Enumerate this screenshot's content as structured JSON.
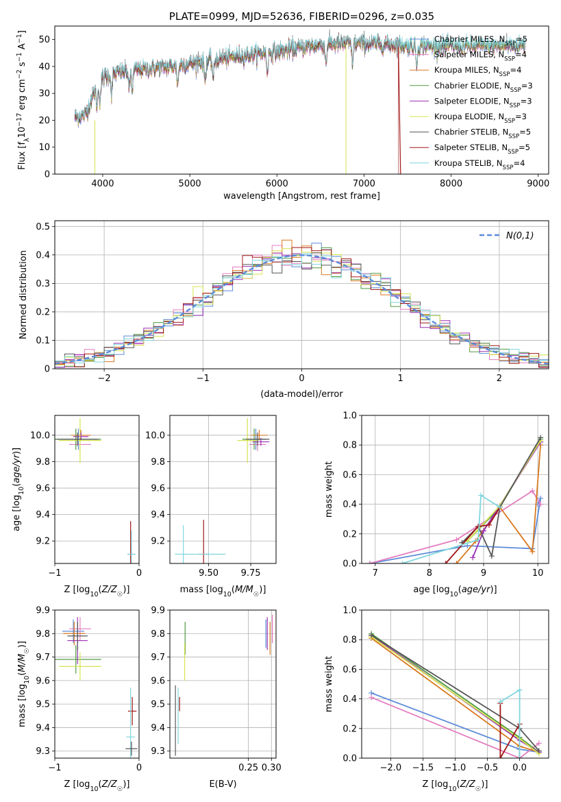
{
  "colors": [
    "#5b8bd9",
    "#e37cbf",
    "#d9781e",
    "#4e9a3e",
    "#9b2fb5",
    "#d5e34f",
    "#555555",
    "#a01515",
    "#7fd6de"
  ],
  "chart_data": [
    {
      "type": "line",
      "title": "PLATE=0999, MJD=52636, FIBERID=0296, z=0.035",
      "xlabel": "wavelength [Angstrom, rest frame]",
      "ylabel": "Flux [f_λ 10^-17 erg cm^-2 s^-1 A^-1]",
      "xlim": [
        3450,
        9120
      ],
      "ylim": [
        0,
        55
      ],
      "xticks": [
        4000,
        5000,
        6000,
        7000,
        8000,
        9000
      ],
      "yticks": [
        0,
        10,
        20,
        30,
        40,
        50
      ],
      "legend_position": "right",
      "spectrum_shape": {
        "x": [
          3680,
          3800,
          3900,
          4000,
          4200,
          4500,
          4800,
          5000,
          5500,
          6000,
          6300,
          6500,
          6800,
          7000,
          7500,
          8000,
          8500,
          8850
        ],
        "y": [
          21,
          22,
          30,
          36,
          38,
          39,
          40,
          41,
          43.5,
          45.5,
          47,
          48,
          48.5,
          48.5,
          47.8,
          47.5,
          47.5,
          48
        ]
      },
      "series": [
        {
          "name": "Chabrier MILES, N_SSP=5"
        },
        {
          "name": "Salpeter MILES, N_SSP=4"
        },
        {
          "name": "Kroupa MILES, N_SSP=4"
        },
        {
          "name": "Chabrier ELODIE, N_SSP=3"
        },
        {
          "name": "Salpeter ELODIE, N_SSP=3"
        },
        {
          "name": "Kroupa ELODIE, N_SSP=3"
        },
        {
          "name": "Chabrier STELIB, N_SSP=5"
        },
        {
          "name": "Salpeter STELIB, N_SSP=5"
        },
        {
          "name": "Kroupa STELIB, N_SSP=4"
        }
      ],
      "legend_text": [
        {
          "a": "Chabrier MILES, N",
          "b": "SSP",
          "c": "=5"
        },
        {
          "a": "Salpeter MILES, N",
          "b": "SSP",
          "c": "=4"
        },
        {
          "a": "Kroupa MILES, N",
          "b": "SSP",
          "c": "=4"
        },
        {
          "a": "Chabrier ELODIE, N",
          "b": "SSP",
          "c": "=3"
        },
        {
          "a": "Salpeter ELODIE, N",
          "b": "SSP",
          "c": "=3"
        },
        {
          "a": "Kroupa ELODIE, N",
          "b": "SSP",
          "c": "=3"
        },
        {
          "a": "Chabrier STELIB, N",
          "b": "SSP",
          "c": "=5"
        },
        {
          "a": "Salpeter STELIB, N",
          "b": "SSP",
          "c": "=5"
        },
        {
          "a": "Kroupa STELIB, N",
          "b": "SSP",
          "c": "=4"
        }
      ]
    },
    {
      "type": "histogram",
      "xlabel": "(data-model)/error",
      "ylabel": "Normed distribution",
      "xlim": [
        -2.5,
        2.5
      ],
      "ylim": [
        0,
        0.52
      ],
      "xticks": [
        -2,
        -1,
        0,
        1,
        2
      ],
      "yticks": [
        0.0,
        0.1,
        0.2,
        0.3,
        0.4,
        0.5
      ],
      "grid": true,
      "legend": "N(0,1)",
      "legend_position": "top-right",
      "bin_width": 0.1
    },
    {
      "type": "scatter-errorbar",
      "xlabel": "Z [log10(Z/Z☉)]",
      "ylabel": "age  [log10(age/yr)]",
      "xlim": [
        -1.0,
        0.0
      ],
      "ylim": [
        9.03,
        10.15
      ],
      "xticks": [
        -1,
        0
      ],
      "yticks": [
        9.2,
        9.4,
        9.6,
        9.8,
        10.0
      ],
      "grid": true,
      "points": [
        {
          "x": -0.72,
          "y": 9.97,
          "xerr": 0.2,
          "yerr": 0.08
        },
        {
          "x": -0.7,
          "y": 9.93,
          "xerr": 0.13,
          "yerr": 0.05
        },
        {
          "x": -0.69,
          "y": 10.0,
          "xerr": 0.12,
          "yerr": 0.04
        },
        {
          "x": -0.75,
          "y": 9.97,
          "xerr": 0.3,
          "yerr": 0.08
        },
        {
          "x": -0.69,
          "y": 9.99,
          "xerr": 0.09,
          "yerr": 0.03
        },
        {
          "x": -0.7,
          "y": 9.96,
          "xerr": 0.25,
          "yerr": 0.17
        },
        {
          "x": -0.73,
          "y": 9.97,
          "xerr": 0.25,
          "yerr": 0.05
        },
        {
          "x": -0.1,
          "y": 9.1,
          "xerr": 0.03,
          "yerr": 0.25
        },
        {
          "x": -0.09,
          "y": 9.1,
          "xerr": 0.05,
          "yerr": 0.18
        }
      ]
    },
    {
      "type": "scatter-errorbar",
      "xlabel": "mass [log10(M/M☉)]",
      "ylabel": "",
      "xlim": [
        9.27,
        9.9
      ],
      "ylim": [
        9.03,
        10.15
      ],
      "xticks": [
        9.5,
        9.75
      ],
      "yticks": [
        9.2,
        9.4,
        9.6,
        9.8,
        10.0
      ],
      "grid": true,
      "points": [
        {
          "x": 9.78,
          "y": 9.97,
          "xerr": 0.05,
          "yerr": 0.08
        },
        {
          "x": 9.79,
          "y": 9.93,
          "xerr": 0.05,
          "yerr": 0.05
        },
        {
          "x": 9.8,
          "y": 10.0,
          "xerr": 0.05,
          "yerr": 0.04
        },
        {
          "x": 9.77,
          "y": 9.97,
          "xerr": 0.07,
          "yerr": 0.08
        },
        {
          "x": 9.81,
          "y": 9.95,
          "xerr": 0.05,
          "yerr": 0.03
        },
        {
          "x": 9.73,
          "y": 9.96,
          "xerr": 0.06,
          "yerr": 0.17
        },
        {
          "x": 9.79,
          "y": 9.97,
          "xerr": 0.07,
          "yerr": 0.05
        },
        {
          "x": 9.47,
          "y": 9.1,
          "xerr": 0.03,
          "yerr": 0.26
        },
        {
          "x": 9.35,
          "y": 9.1,
          "xerr": 0.05,
          "yerr": 0.22
        },
        {
          "x": 9.5,
          "y": 9.1,
          "xerr": 0.1,
          "yerr": 0.01
        }
      ]
    },
    {
      "type": "line",
      "xlabel": "age  [log10(age/yr)]",
      "ylabel": "mass weight",
      "xlim": [
        6.75,
        10.2
      ],
      "ylim": [
        0,
        1.0
      ],
      "xticks": [
        7,
        8,
        9,
        10
      ],
      "yticks": [
        0.0,
        0.2,
        0.4,
        0.6,
        0.8,
        1.0
      ],
      "grid": true,
      "series": [
        {
          "x": [
            6.9,
            8.7,
            9.9,
            10.05,
            10.0
          ],
          "y": [
            0.0,
            0.12,
            0.1,
            0.44,
            0.4
          ]
        },
        {
          "x": [
            6.9,
            8.5,
            9.9,
            10.05
          ],
          "y": [
            0.0,
            0.16,
            0.49,
            0.4
          ]
        },
        {
          "x": [
            8.5,
            8.85,
            9.3,
            9.9,
            10.05
          ],
          "y": [
            0.0,
            0.15,
            0.38,
            0.08,
            0.8
          ]
        },
        {
          "x": [
            8.7,
            9.3,
            10.05
          ],
          "y": [
            0.15,
            0.38,
            0.84
          ]
        },
        {
          "x": [
            8.8,
            9.0,
            10.05
          ],
          "y": [
            0.04,
            0.22,
            0.82
          ]
        },
        {
          "x": [
            8.7,
            9.3,
            10.05
          ],
          "y": [
            0.15,
            0.39,
            0.83
          ]
        },
        {
          "x": [
            8.6,
            8.9,
            9.15,
            9.3,
            10.05
          ],
          "y": [
            0.14,
            0.25,
            0.05,
            0.38,
            0.85
          ]
        },
        {
          "x": [
            8.3,
            8.9,
            9.1,
            9.3
          ],
          "y": [
            0.0,
            0.25,
            0.26,
            0.38
          ]
        },
        {
          "x": [
            7.5,
            8.9,
            8.95,
            9.3
          ],
          "y": [
            0.0,
            0.16,
            0.46,
            0.38
          ]
        }
      ]
    },
    {
      "type": "scatter-errorbar",
      "xlabel": "Z [log10(Z/Z☉)]",
      "ylabel": "mass [log10(M/M☉)]",
      "xlim": [
        -1.0,
        0.0
      ],
      "ylim": [
        9.27,
        9.9
      ],
      "xticks": [
        -1,
        0
      ],
      "yticks": [
        9.3,
        9.4,
        9.5,
        9.6,
        9.7,
        9.8,
        9.9
      ],
      "grid": true,
      "points": [
        {
          "x": -0.78,
          "y": 9.81,
          "xerr": 0.13,
          "yerr": 0.05
        },
        {
          "x": -0.7,
          "y": 9.82,
          "xerr": 0.13,
          "yerr": 0.05
        },
        {
          "x": -0.77,
          "y": 9.8,
          "xerr": 0.13,
          "yerr": 0.05
        },
        {
          "x": -0.75,
          "y": 9.69,
          "xerr": 0.3,
          "yerr": 0.06
        },
        {
          "x": -0.73,
          "y": 9.77,
          "xerr": 0.12,
          "yerr": 0.1
        },
        {
          "x": -0.7,
          "y": 9.66,
          "xerr": 0.25,
          "yerr": 0.06
        },
        {
          "x": -0.73,
          "y": 9.79,
          "xerr": 0.12,
          "yerr": 0.06
        },
        {
          "x": -0.08,
          "y": 9.47,
          "xerr": 0.05,
          "yerr": 0.06
        },
        {
          "x": -0.1,
          "y": 9.36,
          "xerr": 0.05,
          "yerr": 0.21
        },
        {
          "x": -0.09,
          "y": 9.31,
          "xerr": 0.07,
          "yerr": 0.03
        }
      ]
    },
    {
      "type": "scatter-errorbar",
      "xlabel": "E(B-V)",
      "ylabel": "",
      "xlim": [
        0.08,
        0.31
      ],
      "ylim": [
        9.27,
        9.9
      ],
      "xticks": [
        0.25,
        0.3
      ],
      "yticks": [
        9.3,
        9.4,
        9.5,
        9.6,
        9.7,
        9.8,
        9.9
      ],
      "grid": true,
      "points": [
        {
          "x": 0.288,
          "y": 9.8,
          "xerr": 0,
          "yerr": 0.06
        },
        {
          "x": 0.302,
          "y": 9.82,
          "xerr": 0,
          "yerr": 0.06
        },
        {
          "x": 0.297,
          "y": 9.78,
          "xerr": 0,
          "yerr": 0.07
        },
        {
          "x": 0.113,
          "y": 9.78,
          "xerr": 0,
          "yerr": 0.07
        },
        {
          "x": 0.291,
          "y": 9.8,
          "xerr": 0,
          "yerr": 0.07
        },
        {
          "x": 0.112,
          "y": 9.68,
          "xerr": 0,
          "yerr": 0.08
        },
        {
          "x": 0.092,
          "y": 9.43,
          "xerr": 0,
          "yerr": 0.15
        },
        {
          "x": 0.101,
          "y": 9.5,
          "xerr": 0,
          "yerr": 0.03
        },
        {
          "x": 0.098,
          "y": 9.45,
          "xerr": 0,
          "yerr": 0.12
        }
      ]
    },
    {
      "type": "line",
      "xlabel": "Z [log10(Z/Z☉)]",
      "ylabel": "mass weight",
      "xlim": [
        -2.45,
        0.45
      ],
      "ylim": [
        0,
        1.0
      ],
      "xticks": [
        -2.0,
        -1.5,
        -1.0,
        -0.5,
        0.0
      ],
      "yticks": [
        0.0,
        0.2,
        0.4,
        0.6,
        0.8,
        1.0
      ],
      "grid": true,
      "series": [
        {
          "x": [
            -2.3,
            0.0,
            0.3
          ],
          "y": [
            0.44,
            0.06,
            0.04
          ]
        },
        {
          "x": [
            -2.3,
            0.0,
            0.3
          ],
          "y": [
            0.41,
            0.0,
            0.1
          ]
        },
        {
          "x": [
            -2.3,
            0.0,
            0.3
          ],
          "y": [
            0.81,
            0.08,
            0.04
          ]
        },
        {
          "x": [
            -2.3,
            0.0,
            0.3
          ],
          "y": [
            0.84,
            0.14,
            0.04
          ]
        },
        {
          "x": [
            -2.3,
            0.0,
            0.3
          ],
          "y": [
            0.83,
            0.12,
            0.04
          ]
        },
        {
          "x": [
            -2.3,
            0.0,
            0.3
          ],
          "y": [
            0.82,
            0.13,
            0.03
          ]
        },
        {
          "x": [
            -2.3,
            0.0,
            0.3
          ],
          "y": [
            0.83,
            0.2,
            0.05
          ]
        },
        {
          "x": [
            -0.3,
            -0.3,
            0.0,
            0.0
          ],
          "y": [
            0.37,
            0.0,
            0.23,
            0.0
          ]
        },
        {
          "x": [
            -0.3,
            0.0,
            0.0
          ],
          "y": [
            0.38,
            0.46,
            0.0
          ]
        }
      ]
    }
  ]
}
